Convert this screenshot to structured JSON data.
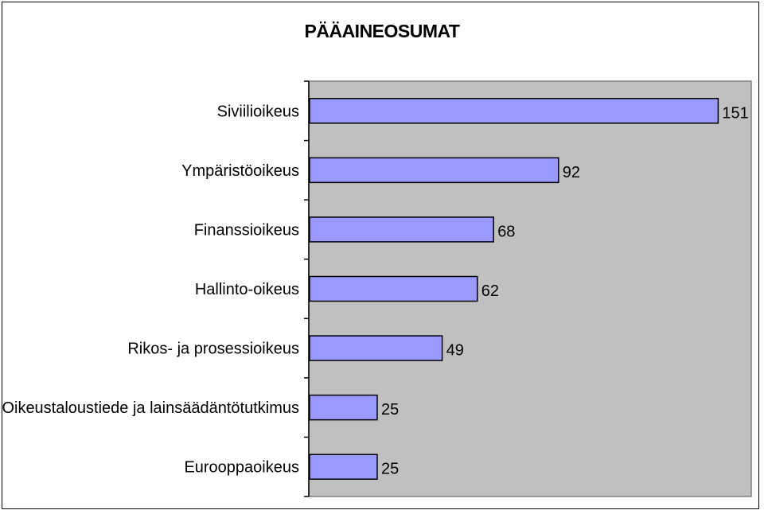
{
  "chart_data": {
    "type": "bar",
    "orientation": "horizontal",
    "title": "PÄÄAINEOSUMAT",
    "categories": [
      "Siviilioikeus",
      "Ympäristöoikeus",
      "Finanssioikeus",
      "Hallinto-oikeus",
      "Rikos- ja prosessioikeus",
      "Oikeustaloustiede ja lainsäädäntötutkimus",
      "Eurooppaoikeus"
    ],
    "values": [
      151,
      92,
      68,
      62,
      49,
      25,
      25
    ],
    "xlim": [
      0,
      160
    ],
    "grid": false,
    "legend": "none",
    "colors": {
      "bar_fill": "#9999ff",
      "bar_stroke": "#000000",
      "plot_background": "#c0c0c0",
      "page_background": "#ffffff"
    }
  }
}
